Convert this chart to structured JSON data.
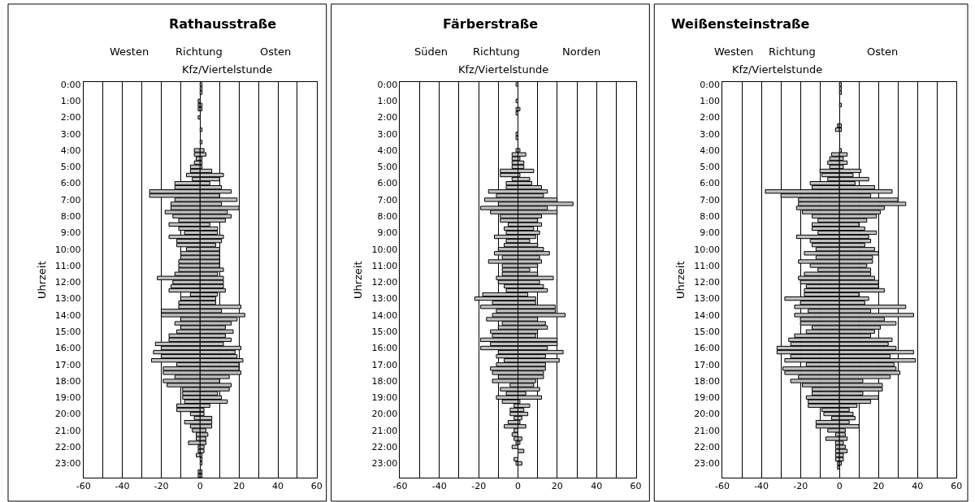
{
  "chart_data": [
    {
      "type": "bar",
      "orientation": "horizontal",
      "stacked": true,
      "title": "Rathausstraße",
      "annotations": [
        "Westen",
        "Richtung",
        "Osten",
        "Kfz/Viertelstunde"
      ],
      "ylabel": "Uhrzeit",
      "categories": [
        "0:00",
        null,
        null,
        null,
        "1:00",
        null,
        null,
        null,
        "2:00",
        null,
        null,
        null,
        "3:00",
        null,
        null,
        null,
        "4:00",
        null,
        null,
        null,
        "5:00",
        null,
        null,
        null,
        "6:00",
        null,
        null,
        null,
        "7:00",
        null,
        null,
        null,
        "8:00",
        null,
        null,
        null,
        "9:00",
        null,
        null,
        null,
        "10:00",
        null,
        null,
        null,
        "11:00",
        null,
        null,
        null,
        "12:00",
        null,
        null,
        null,
        "13:00",
        null,
        null,
        null,
        "14:00",
        null,
        null,
        null,
        "15:00",
        null,
        null,
        null,
        "16:00",
        null,
        null,
        null,
        "17:00",
        null,
        null,
        null,
        "18:00",
        null,
        null,
        null,
        "19:00",
        null,
        null,
        null,
        "20:00",
        null,
        null,
        null,
        "21:00",
        null,
        null,
        null,
        "22:00",
        null,
        null,
        null,
        "23:00",
        null,
        null,
        null
      ],
      "series": [
        {
          "color": "#c0c0c0",
          "values": [
            0,
            0,
            0,
            0,
            -1,
            -1,
            -1,
            0,
            -1,
            0,
            0,
            0,
            0,
            0,
            0,
            0,
            -3,
            -3,
            -2,
            -3,
            -5,
            -5,
            -7,
            -4,
            -13,
            -13,
            -26,
            -26,
            -13,
            -15,
            -15,
            -18,
            -14,
            -11,
            -16,
            -11,
            -8,
            -16,
            -12,
            -12,
            -7,
            -10,
            -10,
            -11,
            -11,
            -11,
            -13,
            -22,
            -14,
            -15,
            -16,
            -5,
            -10,
            -11,
            -11,
            -20,
            -20,
            -10,
            -13,
            -10,
            -12,
            -16,
            -16,
            -23,
            -20,
            -24,
            -20,
            -25,
            -12,
            -19,
            -19,
            -13,
            -19,
            -17,
            -9,
            -9,
            -9,
            -8,
            -12,
            -12,
            -5,
            -3,
            -8,
            -5,
            -4,
            -2,
            -2,
            -6,
            -1,
            -1,
            -2,
            0,
            0,
            0,
            -1,
            -1
          ]
        },
        {
          "color": "#c0c0c0",
          "values": [
            1,
            1,
            1,
            0,
            0,
            1,
            1,
            0,
            0,
            0,
            0,
            1,
            0,
            0,
            1,
            0,
            2,
            3,
            1,
            1,
            1,
            6,
            12,
            10,
            5,
            11,
            16,
            10,
            19,
            11,
            20,
            14,
            16,
            13,
            5,
            9,
            9,
            12,
            11,
            8,
            10,
            10,
            10,
            10,
            10,
            12,
            9,
            12,
            12,
            12,
            13,
            9,
            8,
            8,
            21,
            11,
            23,
            19,
            16,
            13,
            17,
            13,
            16,
            12,
            21,
            18,
            19,
            22,
            20,
            20,
            21,
            15,
            10,
            16,
            15,
            9,
            11,
            14,
            5,
            2,
            2,
            6,
            6,
            6,
            3,
            4,
            3,
            3,
            2,
            2,
            1,
            1,
            1,
            0,
            1,
            1
          ]
        }
      ],
      "xlim": [
        -60,
        60
      ],
      "xticks": [
        -60,
        {
          "value": -50,
          "label": null
        },
        -40,
        {
          "value": -30,
          "label": null
        },
        -20,
        {
          "value": -10,
          "label": null
        },
        0,
        {
          "value": 10,
          "label": null
        },
        20,
        {
          "value": 30,
          "label": null
        },
        40,
        {
          "value": 50,
          "label": null
        },
        60
      ],
      "grid": "x"
    },
    {
      "type": "bar",
      "orientation": "horizontal",
      "stacked": true,
      "title": "Färberstraße",
      "annotations": [
        "Süden",
        "Richtung",
        "Norden",
        "Kfz/Viertelstunde"
      ],
      "ylabel": "Uhrzeit",
      "categories": [
        "0:00",
        null,
        null,
        null,
        "1:00",
        null,
        null,
        null,
        "2:00",
        null,
        null,
        null,
        "3:00",
        null,
        null,
        null,
        "4:00",
        null,
        null,
        null,
        "5:00",
        null,
        null,
        null,
        "6:00",
        null,
        null,
        null,
        "7:00",
        null,
        null,
        null,
        "8:00",
        null,
        null,
        null,
        "9:00",
        null,
        null,
        null,
        "10:00",
        null,
        null,
        null,
        "11:00",
        null,
        null,
        null,
        "12:00",
        null,
        null,
        null,
        "13:00",
        null,
        null,
        null,
        "14:00",
        null,
        null,
        null,
        "15:00",
        null,
        null,
        null,
        "16:00",
        null,
        null,
        null,
        "17:00",
        null,
        null,
        null,
        "18:00",
        null,
        null,
        null,
        "19:00",
        null,
        null,
        null,
        "20:00",
        null,
        null,
        null,
        "21:00",
        null,
        null,
        null,
        "22:00",
        null,
        null,
        null,
        "23:00",
        null,
        null,
        null
      ],
      "series": [
        {
          "color": "#c0c0c0",
          "values": [
            -1,
            0,
            0,
            0,
            -1,
            0,
            -1,
            -1,
            0,
            0,
            0,
            0,
            -1,
            -1,
            0,
            0,
            -1,
            -3,
            -3,
            -3,
            -3,
            -9,
            -9,
            -3,
            -6,
            -6,
            -15,
            -11,
            -17,
            -10,
            -19,
            -14,
            -9,
            -9,
            -5,
            -7,
            -6,
            -12,
            -6,
            -7,
            -10,
            -12,
            -8,
            -15,
            -8,
            -8,
            -8,
            -11,
            -10,
            -7,
            -6,
            -18,
            -22,
            -13,
            -19,
            -11,
            -13,
            -16,
            -8,
            -10,
            -14,
            -13,
            -19,
            -14,
            -19,
            -10,
            -11,
            -7,
            -11,
            -14,
            -13,
            -10,
            -13,
            -4,
            -9,
            -6,
            -11,
            -8,
            -2,
            -4,
            -4,
            -2,
            -5,
            -7,
            -2,
            -3,
            -2,
            -1,
            -3,
            0,
            0,
            -2,
            -1,
            0,
            0,
            0
          ]
        },
        {
          "color": "#c0c0c0",
          "values": [
            0,
            0,
            0,
            0,
            0,
            0,
            1,
            0,
            0,
            0,
            0,
            0,
            0,
            0,
            0,
            0,
            1,
            4,
            1,
            3,
            3,
            8,
            1,
            6,
            7,
            12,
            15,
            13,
            20,
            28,
            15,
            20,
            12,
            10,
            12,
            8,
            11,
            9,
            6,
            10,
            13,
            16,
            11,
            12,
            10,
            6,
            10,
            18,
            11,
            13,
            15,
            5,
            9,
            9,
            19,
            19,
            24,
            10,
            14,
            15,
            10,
            9,
            20,
            20,
            15,
            23,
            14,
            21,
            14,
            14,
            13,
            13,
            9,
            8,
            11,
            4,
            12,
            1,
            6,
            3,
            5,
            2,
            1,
            4,
            0,
            0,
            2,
            1,
            0,
            3,
            0,
            0,
            2,
            0,
            0,
            0
          ]
        }
      ],
      "xlim": [
        -60,
        60
      ],
      "xticks": [
        -60,
        {
          "value": -50,
          "label": null
        },
        -40,
        {
          "value": -30,
          "label": null
        },
        -20,
        {
          "value": -10,
          "label": null
        },
        0,
        {
          "value": 10,
          "label": null
        },
        20,
        {
          "value": 30,
          "label": null
        },
        40,
        {
          "value": 50,
          "label": null
        },
        60
      ],
      "grid": "x"
    },
    {
      "type": "bar",
      "orientation": "horizontal",
      "stacked": true,
      "title": "Weißensteinstraße",
      "annotations": [
        "Westen",
        "Richtung",
        "Osten",
        "Kfz/Viertelstunde"
      ],
      "ylabel": "Uhrzeit",
      "categories": [
        "0:00",
        null,
        null,
        null,
        "1:00",
        null,
        null,
        null,
        "2:00",
        null,
        null,
        null,
        "3:00",
        null,
        null,
        null,
        "4:00",
        null,
        null,
        null,
        "5:00",
        null,
        null,
        null,
        "6:00",
        null,
        null,
        null,
        "7:00",
        null,
        null,
        null,
        "8:00",
        null,
        null,
        null,
        "9:00",
        null,
        null,
        null,
        "10:00",
        null,
        null,
        null,
        "11:00",
        null,
        null,
        null,
        "12:00",
        null,
        null,
        null,
        "13:00",
        null,
        null,
        null,
        "14:00",
        null,
        null,
        null,
        "15:00",
        null,
        null,
        null,
        "16:00",
        null,
        null,
        null,
        "17:00",
        null,
        null,
        null,
        "18:00",
        null,
        null,
        null,
        "19:00",
        null,
        null,
        null,
        "20:00",
        null,
        null,
        null,
        "21:00",
        null,
        null,
        null,
        "22:00",
        null,
        null,
        null,
        "23:00",
        null,
        null,
        null
      ],
      "series": [
        {
          "color": "#c0c0c0",
          "values": [
            0,
            0,
            0,
            0,
            0,
            0,
            0,
            0,
            0,
            0,
            -1,
            -2,
            0,
            0,
            0,
            0,
            0,
            -4,
            -5,
            -6,
            -5,
            -10,
            -9,
            -6,
            -15,
            -14,
            -38,
            -30,
            -21,
            -21,
            -22,
            -19,
            -14,
            -11,
            -14,
            -14,
            -11,
            -22,
            -15,
            -14,
            -12,
            -18,
            -12,
            -21,
            -15,
            -11,
            -18,
            -21,
            -20,
            -17,
            -18,
            -18,
            -28,
            -20,
            -23,
            -16,
            -23,
            -20,
            -20,
            -14,
            -17,
            -23,
            -26,
            -25,
            -32,
            -32,
            -25,
            -28,
            -17,
            -29,
            -28,
            -21,
            -25,
            -19,
            -14,
            -14,
            -17,
            -16,
            -16,
            -9,
            -8,
            -4,
            -12,
            -12,
            -6,
            -2,
            -7,
            -2,
            -2,
            -2,
            -2,
            -2,
            -1,
            -1,
            0,
            0
          ]
        },
        {
          "color": "#c0c0c0",
          "values": [
            1,
            1,
            1,
            0,
            0,
            1,
            0,
            0,
            0,
            0,
            1,
            1,
            0,
            0,
            0,
            0,
            1,
            4,
            2,
            4,
            2,
            11,
            7,
            15,
            8,
            18,
            27,
            16,
            30,
            34,
            23,
            21,
            19,
            14,
            10,
            13,
            19,
            15,
            16,
            13,
            18,
            20,
            17,
            17,
            14,
            16,
            16,
            18,
            20,
            20,
            23,
            10,
            15,
            13,
            34,
            16,
            38,
            23,
            29,
            21,
            18,
            16,
            27,
            25,
            29,
            38,
            26,
            39,
            28,
            29,
            31,
            26,
            12,
            22,
            22,
            12,
            20,
            16,
            9,
            5,
            7,
            8,
            5,
            10,
            3,
            3,
            4,
            2,
            3,
            4,
            2,
            2,
            1,
            0,
            0,
            0
          ]
        }
      ],
      "xlim": [
        -60,
        60
      ],
      "xticks": [
        -60,
        {
          "value": -50,
          "label": null
        },
        -40,
        {
          "value": -30,
          "label": null
        },
        -20,
        {
          "value": -10,
          "label": null
        },
        0,
        {
          "value": 10,
          "label": null
        },
        20,
        {
          "value": 30,
          "label": null
        },
        40,
        {
          "value": 50,
          "label": null
        },
        60
      ],
      "grid": "x"
    }
  ]
}
